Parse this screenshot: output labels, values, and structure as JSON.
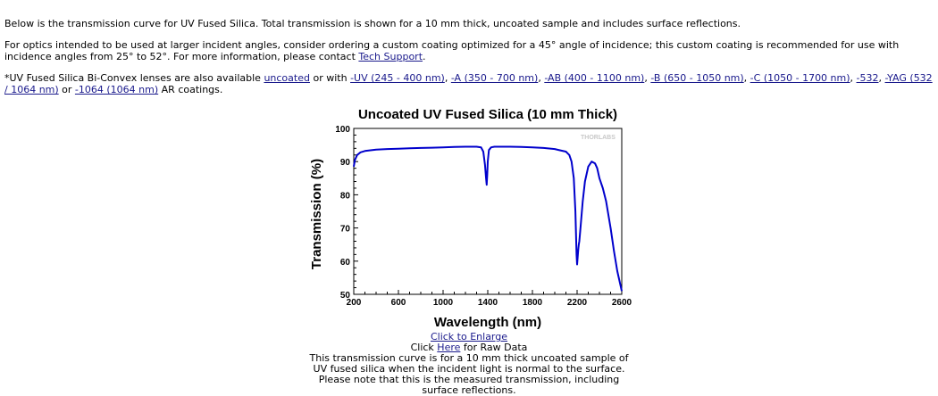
{
  "intro": {
    "p1": "Below is the transmission curve for UV Fused Silica. Total transmission is shown for a 10 mm thick, uncoated sample and includes surface reflections.",
    "p2_text": "For optics intended to be used at larger incident angles, consider ordering a custom coating optimized for a 45° angle of incidence; this custom coating is recommended for use with incidence angles from 25° to 52°. For more information, please contact ",
    "p2_link": "Tech Support",
    "p2_end": ".",
    "p3_prefix": "*UV Fused Silica Bi-Convex lenses are also available ",
    "p3_links": {
      "uncoated": "uncoated",
      "uv": "-UV (245 - 400 nm)",
      "a": "-A (350 - 700 nm)",
      "ab": "-AB (400 - 1100 nm)",
      "b": "-B (650 - 1050 nm)",
      "c": "-C (1050 - 1700 nm)",
      "k532": "-532",
      "yag": "-YAG (532 / 1064 nm)",
      "k1064": "-1064 (1064 nm)"
    },
    "p3_with": " or with ",
    "sep": ", ",
    "or": " or ",
    "p3_suffix": " AR coatings."
  },
  "chart_data": {
    "type": "line",
    "title": "Uncoated UV Fused Silica (10 mm Thick)",
    "xlabel": "Wavelength (nm)",
    "ylabel": "Transmission (%)",
    "xlim": [
      200,
      2600
    ],
    "ylim": [
      50,
      100
    ],
    "xticks": [
      200,
      600,
      1000,
      1400,
      1800,
      2200,
      2600
    ],
    "yticks": [
      50,
      60,
      70,
      80,
      90,
      100
    ],
    "grid": false,
    "watermark": "THORLABS",
    "line_color": "#0000cc",
    "series": [
      {
        "x": [
          200,
          210,
          230,
          260,
          300,
          400,
          500,
          600,
          700,
          800,
          900,
          1000,
          1100,
          1200,
          1300,
          1340,
          1360,
          1375,
          1385,
          1390,
          1395,
          1400,
          1410,
          1430,
          1460,
          1500,
          1600,
          1700,
          1800,
          1900,
          2000,
          2050,
          2100,
          2130,
          2150,
          2170,
          2185,
          2195,
          2200,
          2205,
          2210,
          2215,
          2220,
          2230,
          2250,
          2270,
          2300,
          2330,
          2360,
          2380,
          2400,
          2430,
          2460,
          2500,
          2530,
          2560,
          2580,
          2600
        ],
        "y": [
          88.5,
          90.5,
          92.0,
          92.8,
          93.2,
          93.6,
          93.8,
          93.9,
          94.0,
          94.1,
          94.2,
          94.3,
          94.4,
          94.5,
          94.5,
          94.3,
          93.0,
          89.0,
          85.0,
          83.0,
          86.0,
          90.0,
          93.5,
          94.3,
          94.5,
          94.5,
          94.5,
          94.4,
          94.3,
          94.1,
          93.8,
          93.4,
          93.0,
          92.0,
          90.0,
          85.0,
          75.0,
          62.0,
          59.0,
          61.0,
          63.5,
          65.0,
          66.0,
          70.0,
          78.0,
          84.0,
          88.5,
          90.0,
          89.5,
          88.0,
          85.0,
          82.0,
          78.0,
          70.0,
          63.0,
          57.0,
          54.0,
          51.0
        ]
      }
    ]
  },
  "captions": {
    "enlarge": "Click to Enlarge",
    "click": "Click ",
    "here": "Here",
    "raw": " for Raw Data",
    "desc": "This transmission curve is for a 10 mm thick uncoated sample of UV fused silica when the incident light is normal to the surface. Please note that this is the measured transmission, including surface reflections."
  }
}
